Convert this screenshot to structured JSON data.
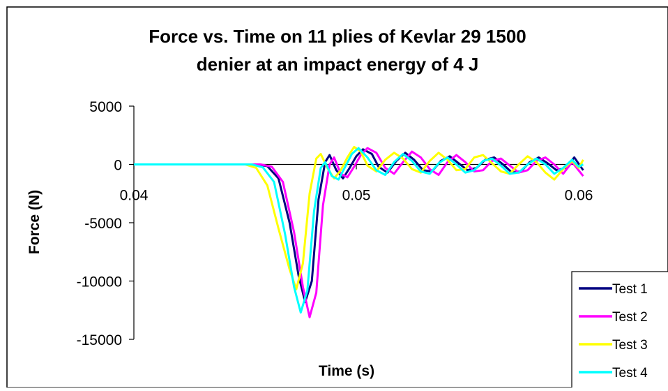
{
  "chart_data": {
    "type": "line",
    "title_line1": "Force vs. Time on 11 plies of Kevlar 29 1500",
    "title_line2": "denier at an impact energy of 4 J",
    "xlabel": "Time (s)",
    "ylabel": "Force (N)",
    "xlim": [
      0.04,
      0.06
    ],
    "ylim": [
      -15000,
      5000
    ],
    "x_ticks": [
      "0.04",
      "0.05",
      "0.06"
    ],
    "y_ticks": [
      "5000",
      "0",
      "-5000",
      "-10000",
      "-15000"
    ],
    "grid": false,
    "legend_position": "bottom-right",
    "series": [
      {
        "name": "Test 1",
        "color": "#000080",
        "points": [
          [
            0.04,
            0
          ],
          [
            0.0455,
            0
          ],
          [
            0.046,
            -150
          ],
          [
            0.0465,
            -1200
          ],
          [
            0.047,
            -5000
          ],
          [
            0.0474,
            -9500
          ],
          [
            0.0477,
            -11800
          ],
          [
            0.048,
            -10000
          ],
          [
            0.0483,
            -3000
          ],
          [
            0.0486,
            200
          ],
          [
            0.0488,
            800
          ],
          [
            0.0491,
            -500
          ],
          [
            0.0494,
            -1200
          ],
          [
            0.0497,
            -300
          ],
          [
            0.05,
            700
          ],
          [
            0.0503,
            1300
          ],
          [
            0.0507,
            900
          ],
          [
            0.051,
            -200
          ],
          [
            0.0514,
            -700
          ],
          [
            0.0518,
            300
          ],
          [
            0.0522,
            1000
          ],
          [
            0.0526,
            400
          ],
          [
            0.053,
            -500
          ],
          [
            0.0534,
            -600
          ],
          [
            0.0538,
            300
          ],
          [
            0.0542,
            700
          ],
          [
            0.0546,
            100
          ],
          [
            0.055,
            -500
          ],
          [
            0.0554,
            -300
          ],
          [
            0.0558,
            400
          ],
          [
            0.0562,
            600
          ],
          [
            0.0566,
            0
          ],
          [
            0.057,
            -700
          ],
          [
            0.0574,
            -600
          ],
          [
            0.0578,
            200
          ],
          [
            0.0582,
            600
          ],
          [
            0.0586,
            100
          ],
          [
            0.059,
            -500
          ],
          [
            0.0594,
            -300
          ],
          [
            0.0598,
            600
          ],
          [
            0.0602,
            -500
          ]
        ]
      },
      {
        "name": "Test 2",
        "color": "#ff00ff",
        "points": [
          [
            0.04,
            0
          ],
          [
            0.0457,
            0
          ],
          [
            0.0462,
            -200
          ],
          [
            0.0467,
            -1500
          ],
          [
            0.0472,
            -5800
          ],
          [
            0.0476,
            -10500
          ],
          [
            0.0479,
            -13100
          ],
          [
            0.0482,
            -11000
          ],
          [
            0.0485,
            -3500
          ],
          [
            0.0488,
            0
          ],
          [
            0.049,
            600
          ],
          [
            0.0493,
            -800
          ],
          [
            0.0496,
            -1100
          ],
          [
            0.0499,
            -200
          ],
          [
            0.0502,
            800
          ],
          [
            0.0505,
            1400
          ],
          [
            0.0509,
            1000
          ],
          [
            0.0513,
            -300
          ],
          [
            0.0517,
            -800
          ],
          [
            0.0521,
            200
          ],
          [
            0.0525,
            1100
          ],
          [
            0.0529,
            600
          ],
          [
            0.0533,
            -400
          ],
          [
            0.0537,
            -900
          ],
          [
            0.0541,
            200
          ],
          [
            0.0545,
            800
          ],
          [
            0.0549,
            200
          ],
          [
            0.0553,
            -600
          ],
          [
            0.0557,
            -500
          ],
          [
            0.0561,
            300
          ],
          [
            0.0565,
            500
          ],
          [
            0.0569,
            -100
          ],
          [
            0.0573,
            -700
          ],
          [
            0.0577,
            -500
          ],
          [
            0.0581,
            300
          ],
          [
            0.0585,
            600
          ],
          [
            0.0589,
            0
          ],
          [
            0.0593,
            -800
          ],
          [
            0.0597,
            200
          ],
          [
            0.0602,
            -1000
          ]
        ]
      },
      {
        "name": "Test 3",
        "color": "#ffff00",
        "points": [
          [
            0.04,
            0
          ],
          [
            0.045,
            0
          ],
          [
            0.0455,
            -300
          ],
          [
            0.046,
            -1800
          ],
          [
            0.0465,
            -5500
          ],
          [
            0.047,
            -9000
          ],
          [
            0.0473,
            -10700
          ],
          [
            0.0476,
            -8500
          ],
          [
            0.0479,
            -2500
          ],
          [
            0.0482,
            500
          ],
          [
            0.0484,
            900
          ],
          [
            0.0487,
            -300
          ],
          [
            0.049,
            -1200
          ],
          [
            0.0493,
            -500
          ],
          [
            0.0496,
            600
          ],
          [
            0.0499,
            1500
          ],
          [
            0.0502,
            1100
          ],
          [
            0.0505,
            -100
          ],
          [
            0.0509,
            -600
          ],
          [
            0.0513,
            400
          ],
          [
            0.0517,
            1000
          ],
          [
            0.0521,
            500
          ],
          [
            0.0525,
            -400
          ],
          [
            0.0529,
            -700
          ],
          [
            0.0533,
            300
          ],
          [
            0.0537,
            1000
          ],
          [
            0.0541,
            400
          ],
          [
            0.0545,
            -500
          ],
          [
            0.0549,
            -400
          ],
          [
            0.0553,
            600
          ],
          [
            0.0557,
            800
          ],
          [
            0.0561,
            100
          ],
          [
            0.0565,
            -600
          ],
          [
            0.0569,
            -800
          ],
          [
            0.0573,
            0
          ],
          [
            0.0577,
            700
          ],
          [
            0.0581,
            200
          ],
          [
            0.0585,
            -700
          ],
          [
            0.0589,
            -1300
          ],
          [
            0.0593,
            -400
          ],
          [
            0.0597,
            300
          ],
          [
            0.06,
            -300
          ],
          [
            0.0602,
            400
          ]
        ]
      },
      {
        "name": "Test 4",
        "color": "#00ffff",
        "points": [
          [
            0.04,
            0
          ],
          [
            0.0453,
            0
          ],
          [
            0.0458,
            -250
          ],
          [
            0.0463,
            -1500
          ],
          [
            0.0468,
            -6000
          ],
          [
            0.0472,
            -10500
          ],
          [
            0.0475,
            -12700
          ],
          [
            0.0478,
            -10800
          ],
          [
            0.0481,
            -4000
          ],
          [
            0.0484,
            -300
          ],
          [
            0.0486,
            200
          ],
          [
            0.0489,
            -1000
          ],
          [
            0.0492,
            -1300
          ],
          [
            0.0495,
            -200
          ],
          [
            0.0498,
            900
          ],
          [
            0.0501,
            1400
          ],
          [
            0.0505,
            600
          ],
          [
            0.0509,
            -500
          ],
          [
            0.0513,
            -900
          ],
          [
            0.0517,
            200
          ],
          [
            0.0521,
            900
          ],
          [
            0.0525,
            300
          ],
          [
            0.0529,
            -600
          ],
          [
            0.0533,
            -800
          ],
          [
            0.0537,
            100
          ],
          [
            0.0541,
            600
          ],
          [
            0.0545,
            0
          ],
          [
            0.0549,
            -700
          ],
          [
            0.0553,
            -500
          ],
          [
            0.0557,
            300
          ],
          [
            0.0561,
            500
          ],
          [
            0.0565,
            -100
          ],
          [
            0.0569,
            -800
          ],
          [
            0.0573,
            -700
          ],
          [
            0.0577,
            0
          ],
          [
            0.0581,
            500
          ],
          [
            0.0585,
            0
          ],
          [
            0.0589,
            -800
          ],
          [
            0.0593,
            -300
          ],
          [
            0.0597,
            400
          ],
          [
            0.06,
            -200
          ],
          [
            0.0602,
            0
          ]
        ]
      }
    ]
  }
}
